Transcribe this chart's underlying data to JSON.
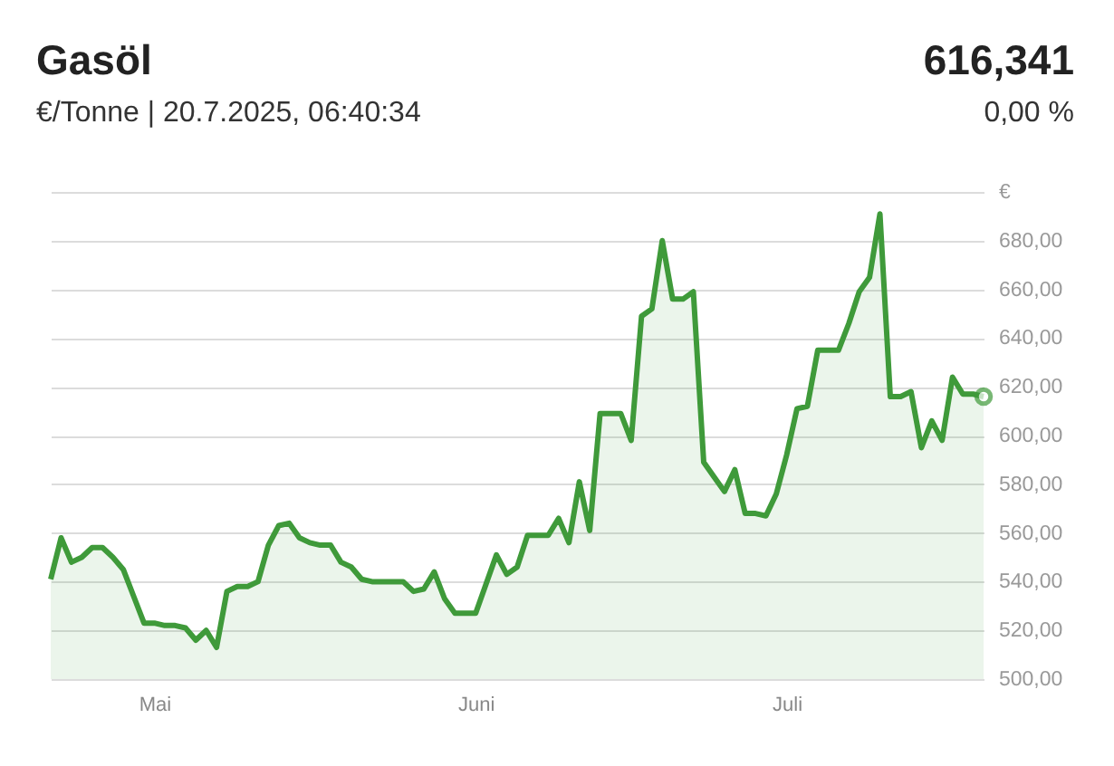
{
  "chart_data": {
    "type": "area",
    "title": "Gasöl",
    "subtitle": "€/Tonne | 20.7.2025, 06:40:34",
    "annotations": [
      "616,341",
      "0,00 %"
    ],
    "x": [
      "2025-04-21",
      "2025-04-22",
      "2025-04-23",
      "2025-04-24",
      "2025-04-25",
      "2025-04-26",
      "2025-04-27",
      "2025-04-28",
      "2025-04-29",
      "2025-04-30",
      "2025-05-01",
      "2025-05-02",
      "2025-05-03",
      "2025-05-04",
      "2025-05-05",
      "2025-05-06",
      "2025-05-07",
      "2025-05-08",
      "2025-05-09",
      "2025-05-10",
      "2025-05-11",
      "2025-05-12",
      "2025-05-13",
      "2025-05-14",
      "2025-05-15",
      "2025-05-16",
      "2025-05-17",
      "2025-05-18",
      "2025-05-19",
      "2025-05-20",
      "2025-05-21",
      "2025-05-22",
      "2025-05-23",
      "2025-05-24",
      "2025-05-25",
      "2025-05-26",
      "2025-05-27",
      "2025-05-28",
      "2025-05-29",
      "2025-05-30",
      "2025-05-31",
      "2025-06-01",
      "2025-06-02",
      "2025-06-03",
      "2025-06-04",
      "2025-06-05",
      "2025-06-06",
      "2025-06-07",
      "2025-06-08",
      "2025-06-09",
      "2025-06-10",
      "2025-06-11",
      "2025-06-12",
      "2025-06-13",
      "2025-06-14",
      "2025-06-15",
      "2025-06-16",
      "2025-06-17",
      "2025-06-18",
      "2025-06-19",
      "2025-06-20",
      "2025-06-21",
      "2025-06-22",
      "2025-06-23",
      "2025-06-24",
      "2025-06-25",
      "2025-06-26",
      "2025-06-27",
      "2025-06-28",
      "2025-06-29",
      "2025-06-30",
      "2025-07-01",
      "2025-07-02",
      "2025-07-03",
      "2025-07-04",
      "2025-07-05",
      "2025-07-06",
      "2025-07-07",
      "2025-07-08",
      "2025-07-09",
      "2025-07-10",
      "2025-07-11",
      "2025-07-12",
      "2025-07-13",
      "2025-07-14",
      "2025-07-15",
      "2025-07-16",
      "2025-07-17",
      "2025-07-18",
      "2025-07-19",
      "2025-07-20"
    ],
    "series": [
      {
        "color": "#3f9a3a",
        "values": [
          541,
          558,
          548,
          550,
          554,
          554,
          550,
          545,
          534,
          523,
          523,
          522,
          522,
          521,
          516,
          520,
          513,
          536,
          538,
          538,
          540,
          555,
          563,
          564,
          558,
          556,
          555,
          555,
          548,
          546,
          541,
          540,
          540,
          540,
          540,
          536,
          537,
          544,
          533,
          527,
          527,
          527,
          539,
          551,
          543,
          546,
          559,
          559,
          559,
          566,
          556,
          581,
          561,
          609,
          609,
          609,
          598,
          649,
          652,
          680,
          656,
          656,
          659,
          589,
          583,
          577,
          586,
          568,
          568,
          567,
          576,
          592,
          611,
          612,
          635,
          635,
          635,
          646,
          659,
          665,
          691,
          616,
          616,
          618,
          595,
          606,
          598,
          624,
          617,
          617,
          616
        ]
      }
    ],
    "xlim": [
      "2025-04-21",
      "2025-07-20"
    ],
    "xticks": [
      {
        "value": "2025-05-01",
        "label": "Mai"
      },
      {
        "value": "2025-06-01",
        "label": "Juni"
      },
      {
        "value": "2025-07-01",
        "label": "Juli"
      }
    ],
    "ylim": [
      500,
      700
    ],
    "yticks": [
      {
        "value": 500,
        "label": "500,00"
      },
      {
        "value": 520,
        "label": "520,00"
      },
      {
        "value": 540,
        "label": "540,00"
      },
      {
        "value": 560,
        "label": "560,00"
      },
      {
        "value": 580,
        "label": "580,00"
      },
      {
        "value": 600,
        "label": "600,00"
      },
      {
        "value": 620,
        "label": "620,00"
      },
      {
        "value": 640,
        "label": "640,00"
      },
      {
        "value": 660,
        "label": "660,00"
      },
      {
        "value": 680,
        "label": "680,00"
      },
      {
        "value": 700,
        "label": "€"
      }
    ],
    "grid": "y"
  }
}
